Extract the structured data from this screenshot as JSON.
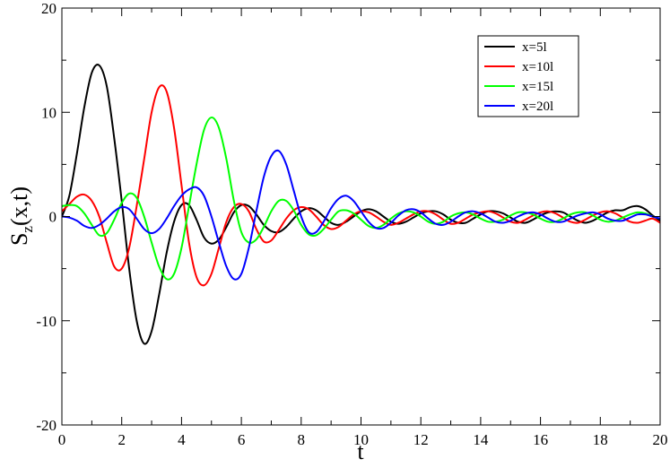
{
  "chart_data": {
    "type": "line",
    "xlabel": "t",
    "ylabel": [
      "S",
      "z",
      "(x,t)"
    ],
    "xlim": [
      0,
      20
    ],
    "ylim": [
      -20,
      20
    ],
    "xticks": [
      0,
      2,
      4,
      6,
      8,
      10,
      12,
      14,
      16,
      18,
      20
    ],
    "yticks": [
      -20,
      -10,
      0,
      10,
      20
    ],
    "xminorticks": [
      1,
      3,
      5,
      7,
      9,
      11,
      13,
      15,
      17,
      19
    ],
    "yminorticks": [
      -15,
      -5,
      5,
      15
    ],
    "legend": "upper right",
    "x": [
      0,
      0.25,
      0.5,
      0.75,
      1,
      1.25,
      1.5,
      1.75,
      2,
      2.25,
      2.5,
      2.75,
      3,
      3.25,
      3.5,
      3.75,
      4,
      4.25,
      4.5,
      4.75,
      5,
      5.25,
      5.5,
      5.75,
      6,
      6.25,
      6.5,
      6.75,
      7,
      7.25,
      7.5,
      7.75,
      8,
      8.25,
      8.5,
      8.75,
      9,
      9.25,
      9.5,
      9.75,
      10,
      10.25,
      10.5,
      10.75,
      11,
      11.25,
      11.5,
      11.75,
      12,
      12.25,
      12.5,
      12.75,
      13,
      13.25,
      13.5,
      13.75,
      14,
      14.25,
      14.5,
      14.75,
      15,
      15.25,
      15.5,
      15.75,
      16,
      16.25,
      16.5,
      16.75,
      17,
      17.25,
      17.5,
      17.75,
      18,
      18.25,
      18.5,
      18.75,
      19,
      19.25,
      19.5,
      19.75,
      20
    ],
    "series": [
      {
        "name": "x=5l",
        "color": "#000000",
        "values": [
          0,
          2,
          6,
          10.5,
          13.8,
          14.5,
          12.5,
          7.5,
          1.5,
          -5,
          -10,
          -12.2,
          -11,
          -7.5,
          -3.5,
          -0.5,
          1.1,
          1.1,
          -0.3,
          -2,
          -2.6,
          -2.2,
          -1,
          0.4,
          1.1,
          1.0,
          0.2,
          -0.8,
          -1.4,
          -1.5,
          -1,
          -0.2,
          0.5,
          0.8,
          0.6,
          0,
          -0.6,
          -0.8,
          -0.5,
          0,
          0.5,
          0.7,
          0.5,
          0,
          -0.5,
          -0.7,
          -0.5,
          -0.1,
          0.3,
          0.5,
          0.5,
          0.2,
          -0.3,
          -0.6,
          -0.6,
          -0.2,
          0.2,
          0.5,
          0.5,
          0.3,
          -0.1,
          -0.5,
          -0.6,
          -0.3,
          0.1,
          0.4,
          0.5,
          0.4,
          0,
          -0.4,
          -0.6,
          -0.4,
          0,
          0.4,
          0.6,
          0.6,
          0.9,
          1.0,
          0.7,
          0.1,
          -0.4
        ]
      },
      {
        "name": "x=10l",
        "color": "#ff0000",
        "values": [
          0.5,
          1.2,
          1.9,
          2.1,
          1.5,
          0,
          -2.5,
          -4.8,
          -5,
          -3,
          1,
          5.5,
          10,
          12.4,
          12,
          8.5,
          3,
          -2.5,
          -5.8,
          -6.6,
          -5.5,
          -3,
          -0.5,
          0.9,
          1.2,
          0.5,
          -1.2,
          -2.4,
          -2.3,
          -1.3,
          -0.2,
          0.6,
          0.9,
          0.7,
          0,
          -0.8,
          -1.2,
          -1,
          -0.4,
          0.2,
          0.5,
          0.4,
          0,
          -0.5,
          -0.8,
          -0.6,
          -0.2,
          0.2,
          0.5,
          0.5,
          0.2,
          -0.3,
          -0.7,
          -0.6,
          -0.2,
          0.2,
          0.4,
          0.5,
          0.3,
          -0.1,
          -0.5,
          -0.6,
          -0.3,
          0.1,
          0.4,
          0.5,
          0.3,
          -0.1,
          -0.5,
          -0.6,
          -0.3,
          0.1,
          0.4,
          0.5,
          0.3,
          -0.1,
          -0.5,
          -0.6,
          -0.4,
          -0.2,
          -0.6
        ]
      },
      {
        "name": "x=15l",
        "color": "#00ff00",
        "values": [
          1,
          1.1,
          1,
          0.3,
          -0.8,
          -1.8,
          -1.6,
          -0.3,
          1.3,
          2.2,
          1.8,
          0,
          -2.5,
          -4.8,
          -6,
          -5.5,
          -3,
          1,
          5,
          8.3,
          9.5,
          8.5,
          5.5,
          1.5,
          -1.5,
          -2.5,
          -2.2,
          -1,
          0.5,
          1.5,
          1.5,
          0.6,
          -0.8,
          -1.7,
          -1.8,
          -1.2,
          -0.3,
          0.5,
          0.6,
          0.3,
          -0.3,
          -0.9,
          -1.1,
          -0.8,
          -0.2,
          0.3,
          0.5,
          0.4,
          0,
          -0.5,
          -0.7,
          -0.5,
          0,
          0.3,
          0.4,
          0.2,
          -0.2,
          -0.5,
          -0.5,
          -0.3,
          0.1,
          0.4,
          0.4,
          0.2,
          -0.2,
          -0.5,
          -0.5,
          -0.2,
          0.2,
          0.4,
          0.4,
          0.1,
          -0.3,
          -0.5,
          -0.4,
          -0.1,
          0.2,
          0.4,
          0.3,
          0,
          -0.2
        ]
      },
      {
        "name": "x=20l",
        "color": "#0000ff",
        "values": [
          0,
          -0.1,
          -0.4,
          -0.9,
          -1.1,
          -0.8,
          -0.2,
          0.5,
          0.9,
          0.7,
          -0.2,
          -1.2,
          -1.6,
          -1.2,
          -0.2,
          1,
          2,
          2.6,
          2.8,
          2,
          0,
          -2.5,
          -4.8,
          -6,
          -5.5,
          -3,
          0.5,
          3.8,
          5.8,
          6.3,
          5,
          2.5,
          0,
          -1.5,
          -1.5,
          -0.5,
          0.8,
          1.7,
          2,
          1.5,
          0.5,
          -0.5,
          -1.1,
          -1.1,
          -0.6,
          0.1,
          0.6,
          0.7,
          0.4,
          -0.2,
          -0.7,
          -0.8,
          -0.5,
          0,
          0.4,
          0.5,
          0.3,
          -0.1,
          -0.5,
          -0.6,
          -0.4,
          0,
          0.3,
          0.4,
          0.2,
          -0.2,
          -0.5,
          -0.5,
          -0.2,
          0.1,
          0.3,
          0.4,
          0.2,
          -0.2,
          -0.4,
          -0.4,
          -0.1,
          0.2,
          0.2,
          0,
          -0.2
        ]
      }
    ]
  }
}
